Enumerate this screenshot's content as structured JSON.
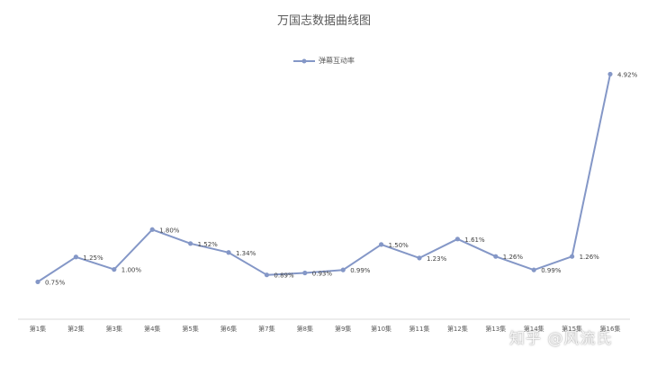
{
  "chart_data": {
    "type": "line",
    "title": "万国志数据曲线图",
    "categories": [
      "第1集",
      "第2集",
      "第3集",
      "第4集",
      "第5集",
      "第6集",
      "第7集",
      "第8集",
      "第9集",
      "第10集",
      "第11集",
      "第12集",
      "第13集",
      "第14集",
      "第15集",
      "第16集"
    ],
    "series": [
      {
        "name": "弹幕互动率",
        "values": [
          0.75,
          1.25,
          1.0,
          1.8,
          1.52,
          1.34,
          0.89,
          0.93,
          0.99,
          1.5,
          1.23,
          1.61,
          1.26,
          0.99,
          1.26,
          4.92
        ],
        "labels": [
          "0.75%",
          "1.25%",
          "1.00%",
          "1.80%",
          "1.52%",
          "1.34%",
          "0.89%",
          "0.93%",
          "0.99%",
          "1.50%",
          "1.23%",
          "1.61%",
          "1.26%",
          "0.99%",
          "1.26%",
          "4.92%"
        ]
      }
    ],
    "xlabel": "",
    "ylabel": "",
    "ylim": [
      0,
      5.5
    ],
    "grid": false,
    "legend_position": "top-center",
    "line_color": "#8497c7"
  },
  "watermark": "知乎 @风流氏"
}
